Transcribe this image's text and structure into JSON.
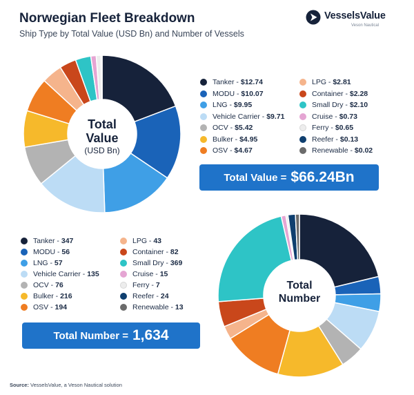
{
  "header": {
    "title": "Norwegian Fleet Breakdown",
    "subtitle": "Ship Type by Total Value (USD Bn) and Number of Vessels"
  },
  "logo": {
    "name": "VesselsValue",
    "tagline": "Veson Nautical"
  },
  "value_center": {
    "line1": "Total",
    "line2": "Value",
    "line3": "(USD Bn)"
  },
  "number_center": {
    "line1": "Total",
    "line2": "Number"
  },
  "value_total": {
    "label": "Total Value =",
    "value": "$66.24Bn"
  },
  "number_total": {
    "label": "Total Number =",
    "value": "1,634"
  },
  "source": {
    "label": "Source:",
    "text": " VesselsValue, a Veson Nautical solution"
  },
  "chart_data": [
    {
      "type": "pie",
      "title": "Total Value (USD Bn)",
      "categories": [
        "Tanker",
        "MODU",
        "LNG",
        "Vehicle Carrier",
        "OCV",
        "Bulker",
        "OSV",
        "LPG",
        "Container",
        "Small Dry",
        "Cruise",
        "Ferry",
        "Reefer",
        "Renewable"
      ],
      "values": [
        12.74,
        10.07,
        9.95,
        9.71,
        5.42,
        4.95,
        4.67,
        2.81,
        2.28,
        2.1,
        0.73,
        0.65,
        0.13,
        0.02
      ],
      "labels": [
        "$12.74",
        "$10.07",
        "$9.95",
        "$9.71",
        "$5.42",
        "$4.95",
        "$4.67",
        "$2.81",
        "$2.28",
        "$2.10",
        "$0.73",
        "$0.65",
        "$0.13",
        "$0.02"
      ],
      "colors": [
        "#16223a",
        "#1a63b8",
        "#3f9fe6",
        "#bcdcf5",
        "#b3b3b3",
        "#f6b92b",
        "#ef7d22",
        "#f5b48c",
        "#c9471b",
        "#2ec4c6",
        "#e5a5d3",
        "#ededed",
        "#0f3f6f",
        "#6b6b6b"
      ]
    },
    {
      "type": "pie",
      "title": "Total Number",
      "categories": [
        "Tanker",
        "MODU",
        "LNG",
        "Vehicle Carrier",
        "OCV",
        "Bulker",
        "OSV",
        "LPG",
        "Container",
        "Small Dry",
        "Cruise",
        "Ferry",
        "Reefer",
        "Renewable"
      ],
      "values": [
        347,
        56,
        57,
        135,
        76,
        216,
        194,
        43,
        82,
        369,
        15,
        7,
        24,
        13
      ],
      "labels": [
        "347",
        "56",
        "57",
        "135",
        "76",
        "216",
        "194",
        "43",
        "82",
        "369",
        "15",
        "7",
        "24",
        "13"
      ],
      "colors": [
        "#16223a",
        "#1a63b8",
        "#3f9fe6",
        "#bcdcf5",
        "#b3b3b3",
        "#f6b92b",
        "#ef7d22",
        "#f5b48c",
        "#c9471b",
        "#2ec4c6",
        "#e5a5d3",
        "#ededed",
        "#0f3f6f",
        "#6b6b6b"
      ]
    }
  ]
}
